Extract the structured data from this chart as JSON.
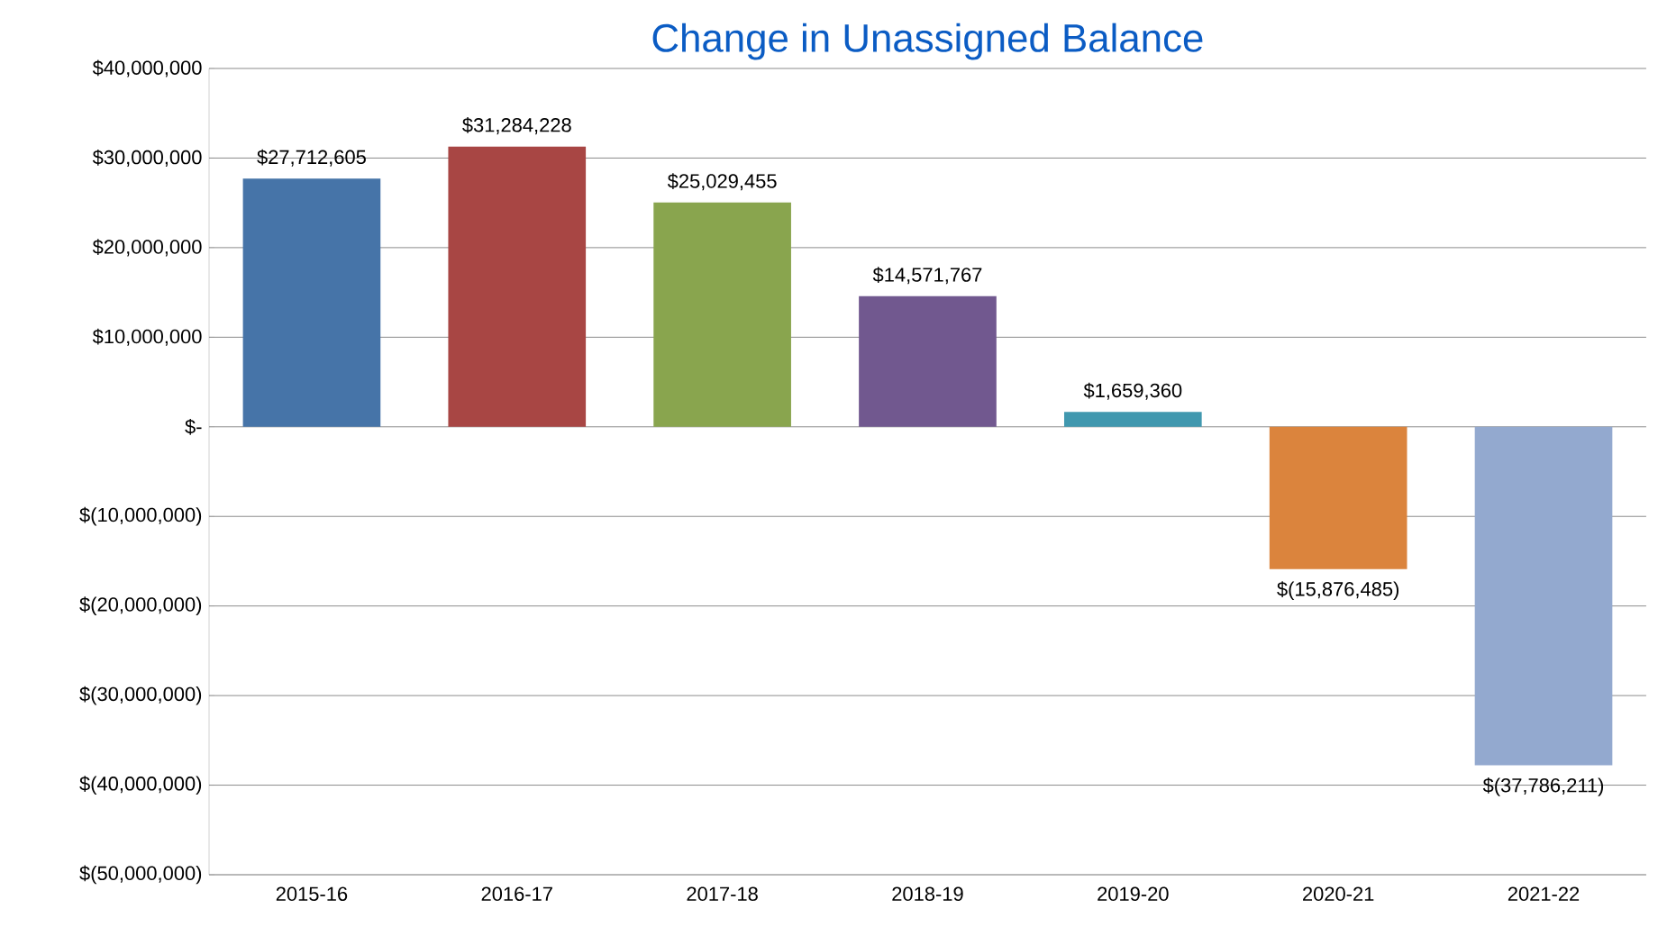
{
  "chart_data": {
    "type": "bar",
    "title": "Change in Unassigned Balance",
    "categories": [
      "2015-16",
      "2016-17",
      "2017-18",
      "2018-19",
      "2019-20",
      "2020-21",
      "2021-22"
    ],
    "values": [
      27712605,
      31284228,
      25029455,
      14571767,
      1659360,
      -15876485,
      -37786211
    ],
    "value_labels": [
      "$27,712,605",
      "$31,284,228",
      "$25,029,455",
      "$14,571,767",
      "$1,659,360",
      "$(15,876,485)",
      "$(37,786,211)"
    ],
    "colors": [
      "#4674a8",
      "#a84644",
      "#89a54e",
      "#71588f",
      "#4198af",
      "#db843d",
      "#93a9cf"
    ],
    "ylim": [
      -50000000,
      40000000
    ],
    "yticks": [
      {
        "value": 40000000,
        "label": "$40,000,000"
      },
      {
        "value": 30000000,
        "label": "$30,000,000"
      },
      {
        "value": 20000000,
        "label": "$20,000,000"
      },
      {
        "value": 10000000,
        "label": "$10,000,000"
      },
      {
        "value": 0,
        "label": "$-"
      },
      {
        "value": -10000000,
        "label": "$(10,000,000)"
      },
      {
        "value": -20000000,
        "label": "$(20,000,000)"
      },
      {
        "value": -30000000,
        "label": "$(30,000,000)"
      },
      {
        "value": -40000000,
        "label": "$(40,000,000)"
      },
      {
        "value": -50000000,
        "label": "$(50,000,000)"
      }
    ],
    "grid": "y"
  }
}
